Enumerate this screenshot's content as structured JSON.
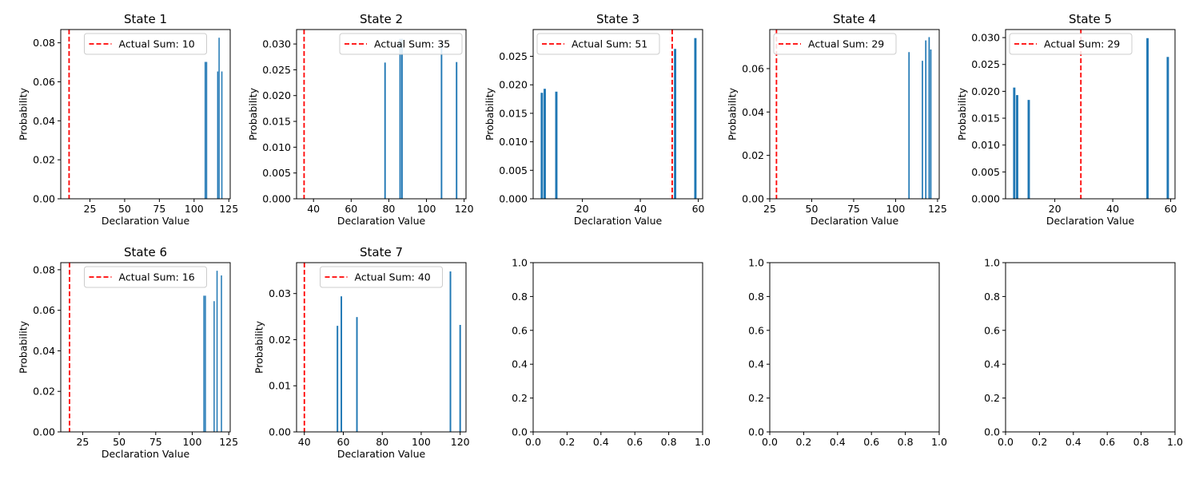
{
  "chart_data": [
    {
      "type": "bar",
      "title": "State 1",
      "xlabel": "Declaration Value",
      "ylabel": "Probability",
      "xlim": [
        4,
        126
      ],
      "ylim": [
        0,
        0.0868
      ],
      "xticks": [
        25,
        50,
        75,
        100,
        125
      ],
      "yticks": [
        0.0,
        0.02,
        0.04,
        0.06,
        0.08
      ],
      "yticklabels": [
        "0.00",
        "0.02",
        "0.04",
        "0.06",
        "0.08"
      ],
      "bars": [
        {
          "x": 108,
          "y": 0.0702
        },
        {
          "x": 109,
          "y": 0.0702
        },
        {
          "x": 117,
          "y": 0.0653
        },
        {
          "x": 118,
          "y": 0.0826
        },
        {
          "x": 120,
          "y": 0.0653
        }
      ],
      "reference_line": {
        "x": 10,
        "label": "Actual Sum: 10",
        "color": "#ff0000"
      },
      "legend_position": "upper center"
    },
    {
      "type": "bar",
      "title": "State 2",
      "xlabel": "Declaration Value",
      "ylabel": "Probability",
      "xlim": [
        31,
        121
      ],
      "ylim": [
        0,
        0.0328
      ],
      "xticks": [
        40,
        60,
        80,
        100,
        120
      ],
      "yticks": [
        0.0,
        0.005,
        0.01,
        0.015,
        0.02,
        0.025,
        0.03
      ],
      "yticklabels": [
        "0.000",
        "0.005",
        "0.010",
        "0.015",
        "0.020",
        "0.025",
        "0.030"
      ],
      "bars": [
        {
          "x": 78,
          "y": 0.0264
        },
        {
          "x": 86,
          "y": 0.031
        },
        {
          "x": 87,
          "y": 0.031
        },
        {
          "x": 108,
          "y": 0.0305
        },
        {
          "x": 116,
          "y": 0.0265
        }
      ],
      "reference_line": {
        "x": 35,
        "label": "Actual Sum: 35",
        "color": "#ff0000"
      },
      "legend_position": "upper right"
    },
    {
      "type": "bar",
      "title": "State 3",
      "xlabel": "Declaration Value",
      "ylabel": "Probability",
      "xlim": [
        3,
        61.5
      ],
      "ylim": [
        0,
        0.0297
      ],
      "xticks": [
        20,
        40,
        60
      ],
      "yticks": [
        0.0,
        0.005,
        0.01,
        0.015,
        0.02,
        0.025
      ],
      "yticklabels": [
        "0.000",
        "0.005",
        "0.010",
        "0.015",
        "0.020",
        "0.025"
      ],
      "bars": [
        {
          "x": 6,
          "y": 0.0186
        },
        {
          "x": 7,
          "y": 0.0193
        },
        {
          "x": 11,
          "y": 0.0188
        },
        {
          "x": 52,
          "y": 0.0263
        },
        {
          "x": 59,
          "y": 0.0282
        }
      ],
      "reference_line": {
        "x": 51,
        "label": "Actual Sum: 51",
        "color": "#ff0000"
      },
      "legend_position": "upper left"
    },
    {
      "type": "bar",
      "title": "State 4",
      "xlabel": "Declaration Value",
      "ylabel": "Probability",
      "xlim": [
        25,
        126
      ],
      "ylim": [
        0,
        0.078
      ],
      "xticks": [
        25,
        50,
        75,
        100,
        125
      ],
      "yticks": [
        0.0,
        0.02,
        0.04,
        0.06
      ],
      "yticklabels": [
        "0.00",
        "0.02",
        "0.04",
        "0.06"
      ],
      "bars": [
        {
          "x": 108,
          "y": 0.0676
        },
        {
          "x": 116,
          "y": 0.0636
        },
        {
          "x": 118,
          "y": 0.073
        },
        {
          "x": 120,
          "y": 0.0745
        },
        {
          "x": 121,
          "y": 0.0688
        }
      ],
      "reference_line": {
        "x": 29,
        "label": "Actual Sum: 29",
        "color": "#ff0000"
      },
      "legend_position": "upper left"
    },
    {
      "type": "bar",
      "title": "State 5",
      "xlabel": "Declaration Value",
      "ylabel": "Probability",
      "xlim": [
        3,
        61.5
      ],
      "ylim": [
        0,
        0.0315
      ],
      "xticks": [
        20,
        40,
        60
      ],
      "yticks": [
        0.0,
        0.005,
        0.01,
        0.015,
        0.02,
        0.025,
        0.03
      ],
      "yticklabels": [
        "0.000",
        "0.005",
        "0.010",
        "0.015",
        "0.020",
        "0.025",
        "0.030"
      ],
      "bars": [
        {
          "x": 6,
          "y": 0.0207
        },
        {
          "x": 7,
          "y": 0.0193
        },
        {
          "x": 11,
          "y": 0.0184
        },
        {
          "x": 52,
          "y": 0.0299
        },
        {
          "x": 59,
          "y": 0.0264
        }
      ],
      "reference_line": {
        "x": 29,
        "label": "Actual Sum: 29",
        "color": "#ff0000"
      },
      "legend_position": "upper left"
    },
    {
      "type": "bar",
      "title": "State 6",
      "xlabel": "Declaration Value",
      "ylabel": "Probability",
      "xlim": [
        10,
        126
      ],
      "ylim": [
        0,
        0.0835
      ],
      "xticks": [
        25,
        50,
        75,
        100,
        125
      ],
      "yticks": [
        0.0,
        0.02,
        0.04,
        0.06,
        0.08
      ],
      "yticklabels": [
        "0.00",
        "0.02",
        "0.04",
        "0.06",
        "0.08"
      ],
      "bars": [
        {
          "x": 108,
          "y": 0.0672
        },
        {
          "x": 109,
          "y": 0.0672
        },
        {
          "x": 115,
          "y": 0.0645
        },
        {
          "x": 117,
          "y": 0.0795
        },
        {
          "x": 120,
          "y": 0.0772
        }
      ],
      "reference_line": {
        "x": 16,
        "label": "Actual Sum: 16",
        "color": "#ff0000"
      },
      "legend_position": "upper center"
    },
    {
      "type": "bar",
      "title": "State 7",
      "xlabel": "Declaration Value",
      "ylabel": "Probability",
      "xlim": [
        36,
        123
      ],
      "ylim": [
        0,
        0.0367
      ],
      "xticks": [
        40,
        60,
        80,
        100,
        120
      ],
      "yticks": [
        0.0,
        0.01,
        0.02,
        0.03
      ],
      "yticklabels": [
        "0.00",
        "0.01",
        "0.02",
        "0.03"
      ],
      "bars": [
        {
          "x": 57,
          "y": 0.023
        },
        {
          "x": 59,
          "y": 0.0294
        },
        {
          "x": 67,
          "y": 0.0249
        },
        {
          "x": 115,
          "y": 0.0348
        },
        {
          "x": 120,
          "y": 0.0232
        }
      ],
      "reference_line": {
        "x": 40,
        "label": "Actual Sum: 40",
        "color": "#ff0000"
      },
      "legend_position": "upper center"
    },
    {
      "type": "empty",
      "xlim": [
        0,
        1
      ],
      "ylim": [
        0,
        1
      ],
      "xticks": [
        0.0,
        0.2,
        0.4,
        0.6,
        0.8,
        1.0
      ],
      "yticks": [
        0.0,
        0.2,
        0.4,
        0.6,
        0.8,
        1.0
      ],
      "xticklabels": [
        "0.0",
        "0.2",
        "0.4",
        "0.6",
        "0.8",
        "1.0"
      ],
      "yticklabels": [
        "0.0",
        "0.2",
        "0.4",
        "0.6",
        "0.8",
        "1.0"
      ]
    },
    {
      "type": "empty",
      "xlim": [
        0,
        1
      ],
      "ylim": [
        0,
        1
      ],
      "xticks": [
        0.0,
        0.2,
        0.4,
        0.6,
        0.8,
        1.0
      ],
      "yticks": [
        0.0,
        0.2,
        0.4,
        0.6,
        0.8,
        1.0
      ],
      "xticklabels": [
        "0.0",
        "0.2",
        "0.4",
        "0.6",
        "0.8",
        "1.0"
      ],
      "yticklabels": [
        "0.0",
        "0.2",
        "0.4",
        "0.6",
        "0.8",
        "1.0"
      ]
    },
    {
      "type": "empty",
      "xlim": [
        0,
        1
      ],
      "ylim": [
        0,
        1
      ],
      "xticks": [
        0.0,
        0.2,
        0.4,
        0.6,
        0.8,
        1.0
      ],
      "yticks": [
        0.0,
        0.2,
        0.4,
        0.6,
        0.8,
        1.0
      ],
      "xticklabels": [
        "0.0",
        "0.2",
        "0.4",
        "0.6",
        "0.8",
        "1.0"
      ],
      "yticklabels": [
        "0.0",
        "0.2",
        "0.4",
        "0.6",
        "0.8",
        "1.0"
      ]
    }
  ],
  "colors": {
    "bar": "#1f77b4",
    "reference_line": "#ff0000"
  }
}
